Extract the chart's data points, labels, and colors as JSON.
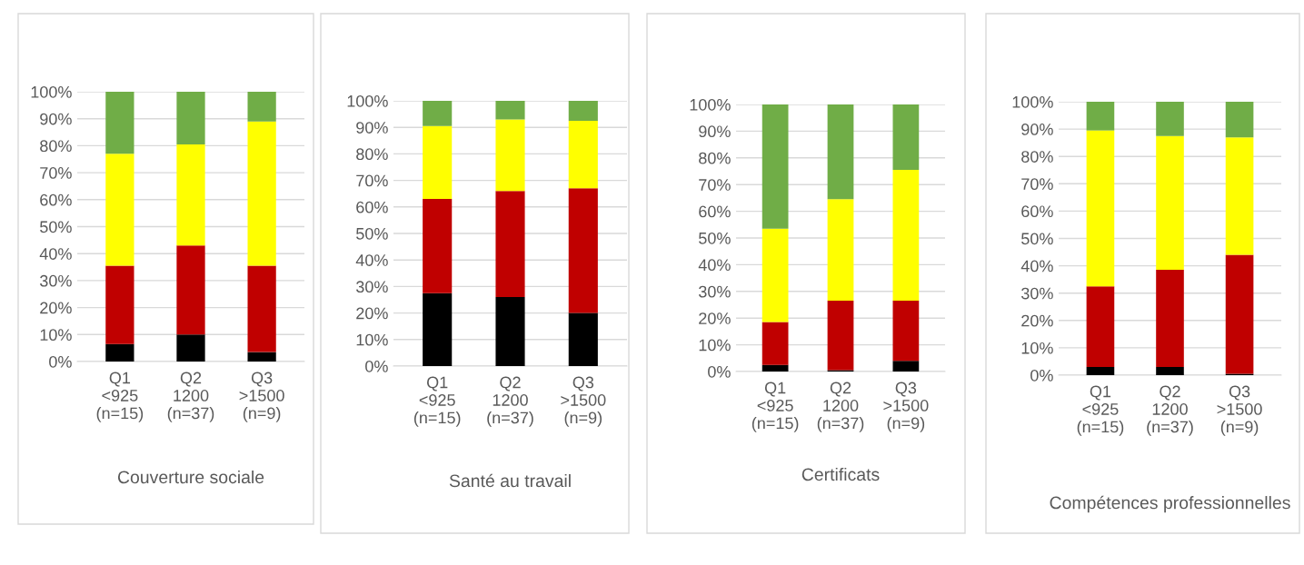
{
  "chart_data": [
    {
      "type": "bar",
      "stacked": true,
      "title": "Couverture sociale",
      "categories": [
        "Q1 <925 (n=15)",
        "Q2 1200 (n=37)",
        "Q3 >1500 (n=9)"
      ],
      "ylim": [
        0,
        100
      ],
      "yticks": [
        {
          "value": 0,
          "label": "0%"
        },
        {
          "value": 10,
          "label": "10%"
        },
        {
          "value": 20,
          "label": "20%"
        },
        {
          "value": 30,
          "label": "30%"
        },
        {
          "value": 40,
          "label": "40%"
        },
        {
          "value": 50,
          "label": "50%"
        },
        {
          "value": 60,
          "label": "60%"
        },
        {
          "value": 70,
          "label": "70%"
        },
        {
          "value": 80,
          "label": "80%"
        },
        {
          "value": 90,
          "label": "90%"
        },
        {
          "value": 100,
          "label": "100%"
        }
      ],
      "grid": "y",
      "series": [
        {
          "color": "#000000",
          "values": [
            6.5,
            10,
            3.5
          ]
        },
        {
          "color": "#c00000",
          "values": [
            29,
            33,
            32
          ]
        },
        {
          "color": "#ffff00",
          "values": [
            41.5,
            37.5,
            53.5
          ]
        },
        {
          "color": "#70ad47",
          "values": [
            23,
            19.5,
            11
          ]
        }
      ]
    },
    {
      "type": "bar",
      "stacked": true,
      "title": "Santé au travail",
      "categories": [
        "Q1 <925 (n=15)",
        "Q2 1200 (n=37)",
        "Q3 >1500 (n=9)"
      ],
      "ylim": [
        0,
        100
      ],
      "yticks": [
        {
          "value": 0,
          "label": "0%"
        },
        {
          "value": 10,
          "label": "10%"
        },
        {
          "value": 20,
          "label": "20%"
        },
        {
          "value": 30,
          "label": "30%"
        },
        {
          "value": 40,
          "label": "40%"
        },
        {
          "value": 50,
          "label": "50%"
        },
        {
          "value": 60,
          "label": "60%"
        },
        {
          "value": 70,
          "label": "70%"
        },
        {
          "value": 80,
          "label": "80%"
        },
        {
          "value": 90,
          "label": "90%"
        },
        {
          "value": 100,
          "label": "100%"
        }
      ],
      "grid": "y",
      "series": [
        {
          "color": "#000000",
          "values": [
            27.5,
            26,
            20
          ]
        },
        {
          "color": "#c00000",
          "values": [
            35.5,
            40,
            47
          ]
        },
        {
          "color": "#ffff00",
          "values": [
            27.5,
            27,
            25.5
          ]
        },
        {
          "color": "#70ad47",
          "values": [
            9.5,
            7,
            7.5
          ]
        }
      ]
    },
    {
      "type": "bar",
      "stacked": true,
      "title": "Certificats",
      "categories": [
        "Q1 <925 (n=15)",
        "Q2 1200 (n=37)",
        "Q3 >1500 (n=9)"
      ],
      "ylim": [
        0,
        100
      ],
      "yticks": [
        {
          "value": 0,
          "label": "0%"
        },
        {
          "value": 10,
          "label": "10%"
        },
        {
          "value": 20,
          "label": "20%"
        },
        {
          "value": 30,
          "label": "30%"
        },
        {
          "value": 40,
          "label": "40%"
        },
        {
          "value": 50,
          "label": "50%"
        },
        {
          "value": 60,
          "label": "60%"
        },
        {
          "value": 70,
          "label": "70%"
        },
        {
          "value": 80,
          "label": "80%"
        },
        {
          "value": 90,
          "label": "90%"
        },
        {
          "value": 100,
          "label": "100%"
        }
      ],
      "grid": "y",
      "series": [
        {
          "color": "#000000",
          "values": [
            2.5,
            0.5,
            4
          ]
        },
        {
          "color": "#c00000",
          "values": [
            16,
            26,
            22.5
          ]
        },
        {
          "color": "#ffff00",
          "values": [
            35,
            38,
            49
          ]
        },
        {
          "color": "#70ad47",
          "values": [
            46.5,
            35.5,
            24.5
          ]
        }
      ]
    },
    {
      "type": "bar",
      "stacked": true,
      "title": "Compétences professionnelles",
      "categories": [
        "Q1 <925 (n=15)",
        "Q2 1200 (n=37)",
        "Q3 >1500 (n=9)"
      ],
      "ylim": [
        0,
        100
      ],
      "yticks": [
        {
          "value": 0,
          "label": "0%"
        },
        {
          "value": 10,
          "label": "10%"
        },
        {
          "value": 20,
          "label": "20%"
        },
        {
          "value": 30,
          "label": "30%"
        },
        {
          "value": 40,
          "label": "40%"
        },
        {
          "value": 50,
          "label": "50%"
        },
        {
          "value": 60,
          "label": "60%"
        },
        {
          "value": 70,
          "label": "70%"
        },
        {
          "value": 80,
          "label": "80%"
        },
        {
          "value": 90,
          "label": "90%"
        },
        {
          "value": 100,
          "label": "100%"
        }
      ],
      "grid": "y",
      "series": [
        {
          "color": "#000000",
          "values": [
            3,
            3,
            0.5
          ]
        },
        {
          "color": "#c00000",
          "values": [
            29.5,
            35.5,
            43.5
          ]
        },
        {
          "color": "#ffff00",
          "values": [
            57,
            49,
            43
          ]
        },
        {
          "color": "#70ad47",
          "values": [
            10.5,
            12.5,
            13
          ]
        }
      ]
    }
  ]
}
